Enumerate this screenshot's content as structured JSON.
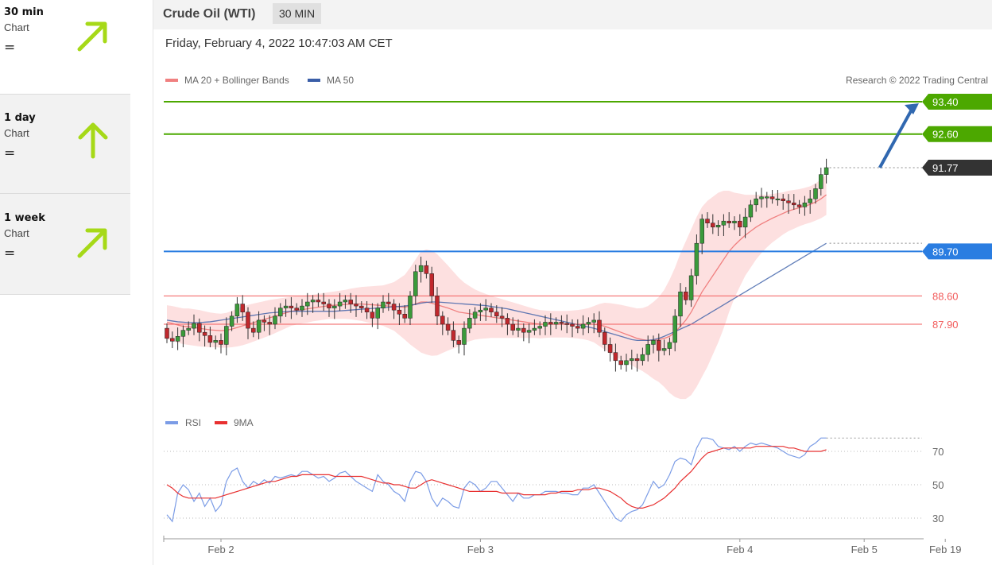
{
  "sidebar": {
    "items": [
      {
        "title": "30 min",
        "subtitle": "Chart",
        "status": "=",
        "arrow": "up-right-arrow"
      },
      {
        "title": "1 day",
        "subtitle": "Chart",
        "status": "=",
        "arrow": "up-arrow"
      },
      {
        "title": "1 week",
        "subtitle": "Chart",
        "status": "=",
        "arrow": "up-right-arrow"
      }
    ],
    "arrow_color": "#a6d918"
  },
  "header": {
    "instrument": "Crude Oil (WTI)",
    "timeframe": "30 MIN"
  },
  "datetime": "Friday, February 4, 2022 10:47:03 AM CET",
  "legend": {
    "ma20": "MA 20 + Bollinger Bands",
    "ma50": "MA 50"
  },
  "copyright": "Research © 2022 Trading Central",
  "rsi_legend": {
    "rsi": "RSI",
    "ma9": "9MA"
  },
  "colors": {
    "green": "#4ca800",
    "blue": "#2a7de1",
    "red": "#f25c5c",
    "dark": "#333333",
    "ma20": "#f08080",
    "ma50": "#3a5ea8",
    "band": "#fde0e0",
    "rsi": "#7b9ce6",
    "rsi_ma": "#e83030",
    "target_arrow": "#3168b0"
  },
  "chart_data": [
    {
      "type": "candlestick",
      "x_ticks": [
        {
          "label": "Feb 2",
          "index": 10
        },
        {
          "label": "Feb 3",
          "index": 58
        },
        {
          "label": "Feb 4",
          "index": 106
        },
        {
          "label": "Feb 5",
          "index": 129
        },
        {
          "label": "Feb 19",
          "index": 144
        }
      ],
      "ylim": [
        85.9,
        93.6
      ],
      "levels": [
        {
          "value": 93.4,
          "label": "93.40",
          "kind": "resistance",
          "color": "#4ca800",
          "tag": "filled"
        },
        {
          "value": 92.6,
          "label": "92.60",
          "kind": "resistance",
          "color": "#4ca800",
          "tag": "filled"
        },
        {
          "value": 91.77,
          "label": "91.77",
          "kind": "last-price",
          "color": "#333333",
          "tag": "filled"
        },
        {
          "value": 89.7,
          "label": "89.70",
          "kind": "pivot",
          "color": "#2a7de1",
          "tag": "filled"
        },
        {
          "value": 88.6,
          "label": "88.60",
          "kind": "support",
          "color": "#f25c5c",
          "tag": "text"
        },
        {
          "value": 87.9,
          "label": "87.90",
          "kind": "support",
          "color": "#f25c5c",
          "tag": "text"
        }
      ],
      "target_arrow": {
        "from_index": 131,
        "from_value": 91.77,
        "to_index": 141,
        "to_value": 93.4
      },
      "close": [
        87.55,
        87.48,
        87.6,
        87.75,
        87.8,
        87.92,
        87.7,
        87.62,
        87.45,
        87.5,
        87.4,
        87.85,
        88.1,
        88.4,
        88.2,
        87.8,
        87.7,
        88.0,
        87.95,
        87.9,
        88.1,
        88.3,
        88.35,
        88.3,
        88.25,
        88.35,
        88.45,
        88.5,
        88.45,
        88.4,
        88.3,
        88.35,
        88.45,
        88.5,
        88.4,
        88.35,
        88.3,
        88.2,
        88.05,
        88.3,
        88.45,
        88.4,
        88.25,
        88.15,
        88.05,
        88.6,
        89.2,
        89.35,
        89.15,
        88.6,
        88.1,
        87.9,
        87.75,
        87.5,
        87.4,
        87.8,
        88.05,
        88.2,
        88.25,
        88.3,
        88.2,
        88.1,
        88.05,
        87.9,
        87.75,
        87.8,
        87.7,
        87.75,
        87.8,
        87.85,
        87.95,
        87.9,
        87.95,
        87.92,
        87.9,
        87.85,
        87.8,
        87.9,
        87.95,
        88.0,
        87.7,
        87.4,
        87.2,
        87.0,
        86.9,
        87.0,
        87.05,
        87.0,
        87.15,
        87.4,
        87.5,
        87.25,
        87.3,
        87.45,
        88.1,
        88.7,
        88.5,
        89.1,
        89.9,
        90.5,
        90.4,
        90.3,
        90.35,
        90.45,
        90.4,
        90.45,
        90.3,
        90.55,
        90.85,
        91.0,
        91.05,
        91.05,
        91.0,
        91.0,
        90.95,
        90.9,
        90.85,
        90.8,
        90.9,
        91.0,
        91.25,
        91.6,
        91.77
      ],
      "ma20": [
        87.95,
        87.92,
        87.88,
        87.85,
        87.84,
        87.82,
        87.8,
        87.78,
        87.76,
        87.75,
        87.74,
        87.75,
        87.78,
        87.82,
        87.86,
        87.9,
        87.94,
        87.98,
        88.02,
        88.06,
        88.1,
        88.14,
        88.18,
        88.22,
        88.24,
        88.26,
        88.28,
        88.3,
        88.32,
        88.34,
        88.36,
        88.37,
        88.38,
        88.39,
        88.4,
        88.4,
        88.4,
        88.39,
        88.38,
        88.37,
        88.36,
        88.35,
        88.34,
        88.33,
        88.32,
        88.35,
        88.4,
        88.45,
        88.45,
        88.42,
        88.38,
        88.34,
        88.3,
        88.25,
        88.2,
        88.18,
        88.16,
        88.14,
        88.12,
        88.1,
        88.08,
        88.06,
        88.04,
        88.02,
        88.0,
        87.98,
        87.96,
        87.94,
        87.92,
        87.9,
        87.9,
        87.9,
        87.9,
        87.9,
        87.9,
        87.9,
        87.9,
        87.9,
        87.9,
        87.9,
        87.88,
        87.85,
        87.8,
        87.75,
        87.7,
        87.65,
        87.6,
        87.55,
        87.52,
        87.5,
        87.5,
        87.52,
        87.55,
        87.6,
        87.7,
        87.85,
        88.0,
        88.2,
        88.45,
        88.7,
        88.9,
        89.1,
        89.3,
        89.5,
        89.7,
        89.85,
        89.98,
        90.1,
        90.2,
        90.3,
        90.38,
        90.45,
        90.52,
        90.58,
        90.64,
        90.7,
        90.74,
        90.78,
        90.82,
        90.86,
        90.92,
        91.0,
        91.1
      ],
      "band_width": [
        0.42,
        0.43,
        0.44,
        0.44,
        0.45,
        0.45,
        0.45,
        0.44,
        0.43,
        0.42,
        0.42,
        0.43,
        0.45,
        0.47,
        0.48,
        0.48,
        0.47,
        0.46,
        0.45,
        0.44,
        0.42,
        0.4,
        0.38,
        0.36,
        0.35,
        0.34,
        0.34,
        0.33,
        0.33,
        0.33,
        0.33,
        0.34,
        0.35,
        0.36,
        0.38,
        0.4,
        0.42,
        0.44,
        0.46,
        0.48,
        0.5,
        0.55,
        0.6,
        0.7,
        0.8,
        0.95,
        1.1,
        1.25,
        1.3,
        1.3,
        1.25,
        1.15,
        1.05,
        0.95,
        0.85,
        0.75,
        0.68,
        0.62,
        0.58,
        0.55,
        0.52,
        0.5,
        0.48,
        0.46,
        0.44,
        0.42,
        0.4,
        0.38,
        0.36,
        0.35,
        0.34,
        0.33,
        0.33,
        0.33,
        0.33,
        0.34,
        0.35,
        0.37,
        0.4,
        0.45,
        0.52,
        0.58,
        0.62,
        0.65,
        0.68,
        0.7,
        0.72,
        0.74,
        0.78,
        0.85,
        0.95,
        1.05,
        1.2,
        1.4,
        1.6,
        1.8,
        1.95,
        2.05,
        2.1,
        2.1,
        2.05,
        1.95,
        1.85,
        1.7,
        1.5,
        1.3,
        1.15,
        1.0,
        0.9,
        0.8,
        0.72,
        0.65,
        0.6,
        0.56,
        0.52,
        0.5,
        0.48,
        0.46,
        0.45,
        0.45,
        0.46,
        0.48,
        0.5
      ],
      "ma50": [
        88.0,
        87.98,
        87.96,
        87.95,
        87.94,
        87.94,
        87.94,
        87.95,
        87.96,
        87.98,
        88.0,
        88.02,
        88.04,
        88.06,
        88.08,
        88.1,
        88.12,
        88.14,
        88.16,
        88.18,
        88.19,
        88.2,
        88.21,
        88.22,
        88.22,
        88.22,
        88.22,
        88.22,
        88.22,
        88.22,
        88.22,
        88.22,
        88.23,
        88.24,
        88.25,
        88.26,
        88.27,
        88.28,
        88.29,
        88.3,
        88.31,
        88.32,
        88.33,
        88.34,
        88.35,
        88.37,
        88.39,
        88.42,
        88.44,
        88.45,
        88.45,
        88.44,
        88.43,
        88.42,
        88.41,
        88.4,
        88.39,
        88.38,
        88.37,
        88.36,
        88.34,
        88.32,
        88.3,
        88.28,
        88.25,
        88.22,
        88.19,
        88.16,
        88.13,
        88.1,
        88.07,
        88.04,
        88.01,
        87.98,
        87.95,
        87.92,
        87.89,
        87.86,
        87.83,
        87.8,
        87.76,
        87.72,
        87.68,
        87.64,
        87.6,
        87.56,
        87.52,
        87.5,
        87.5,
        87.5,
        87.52,
        87.55,
        87.6,
        87.66,
        87.72,
        87.78,
        87.84,
        87.9,
        87.98,
        88.06,
        88.14,
        88.22,
        88.3,
        88.38,
        88.46,
        88.54,
        88.62,
        88.7,
        88.78,
        88.86,
        88.94,
        89.02,
        89.1,
        89.18,
        89.26,
        89.34,
        89.42,
        89.5,
        89.58,
        89.66,
        89.74,
        89.82,
        89.9
      ]
    },
    {
      "type": "line",
      "title": "",
      "y_ticks": [
        30,
        50,
        70
      ],
      "ylim": [
        26,
        84
      ],
      "series": [
        {
          "name": "RSI",
          "values": [
            32,
            28,
            45,
            50,
            47,
            40,
            45,
            37,
            42,
            34,
            38,
            52,
            58,
            60,
            52,
            48,
            52,
            50,
            53,
            51,
            55,
            54,
            55,
            56,
            55,
            58,
            58,
            56,
            54,
            55,
            52,
            54,
            57,
            58,
            55,
            52,
            50,
            48,
            46,
            56,
            52,
            50,
            46,
            44,
            40,
            52,
            58,
            57,
            52,
            42,
            37,
            42,
            40,
            37,
            36,
            48,
            52,
            50,
            46,
            48,
            52,
            52,
            48,
            44,
            40,
            45,
            42,
            42,
            44,
            44,
            46,
            46,
            46,
            45,
            45,
            44,
            44,
            48,
            48,
            50,
            45,
            40,
            35,
            30,
            28,
            32,
            34,
            35,
            38,
            45,
            52,
            48,
            50,
            56,
            64,
            66,
            65,
            62,
            72,
            78,
            78,
            77,
            73,
            72,
            71,
            73,
            70,
            73,
            75,
            74,
            75,
            74,
            73,
            72,
            70,
            68,
            67,
            66,
            68,
            73,
            75,
            78,
            78
          ]
        },
        {
          "name": "9MA",
          "values": [
            50,
            48,
            45,
            43,
            42,
            42,
            42,
            42,
            42,
            42,
            43,
            44,
            45,
            46,
            47,
            48,
            49,
            50,
            51,
            52,
            52,
            53,
            54,
            55,
            55,
            56,
            56,
            56,
            56,
            56,
            56,
            55,
            55,
            55,
            55,
            55,
            55,
            54,
            53,
            52,
            51,
            51,
            50,
            50,
            49,
            48,
            48,
            50,
            52,
            53,
            52,
            51,
            50,
            49,
            48,
            47,
            46,
            46,
            46,
            46,
            46,
            46,
            45,
            45,
            45,
            45,
            44,
            44,
            44,
            44,
            44,
            45,
            45,
            46,
            46,
            46,
            47,
            47,
            47,
            48,
            48,
            47,
            46,
            44,
            42,
            39,
            37,
            36,
            36,
            37,
            38,
            40,
            42,
            45,
            48,
            52,
            55,
            58,
            62,
            66,
            69,
            70,
            71,
            72,
            72,
            72,
            72,
            72,
            72,
            73,
            73,
            73,
            73,
            73,
            73,
            72,
            72,
            71,
            70,
            70,
            70,
            70,
            71
          ]
        }
      ]
    }
  ]
}
